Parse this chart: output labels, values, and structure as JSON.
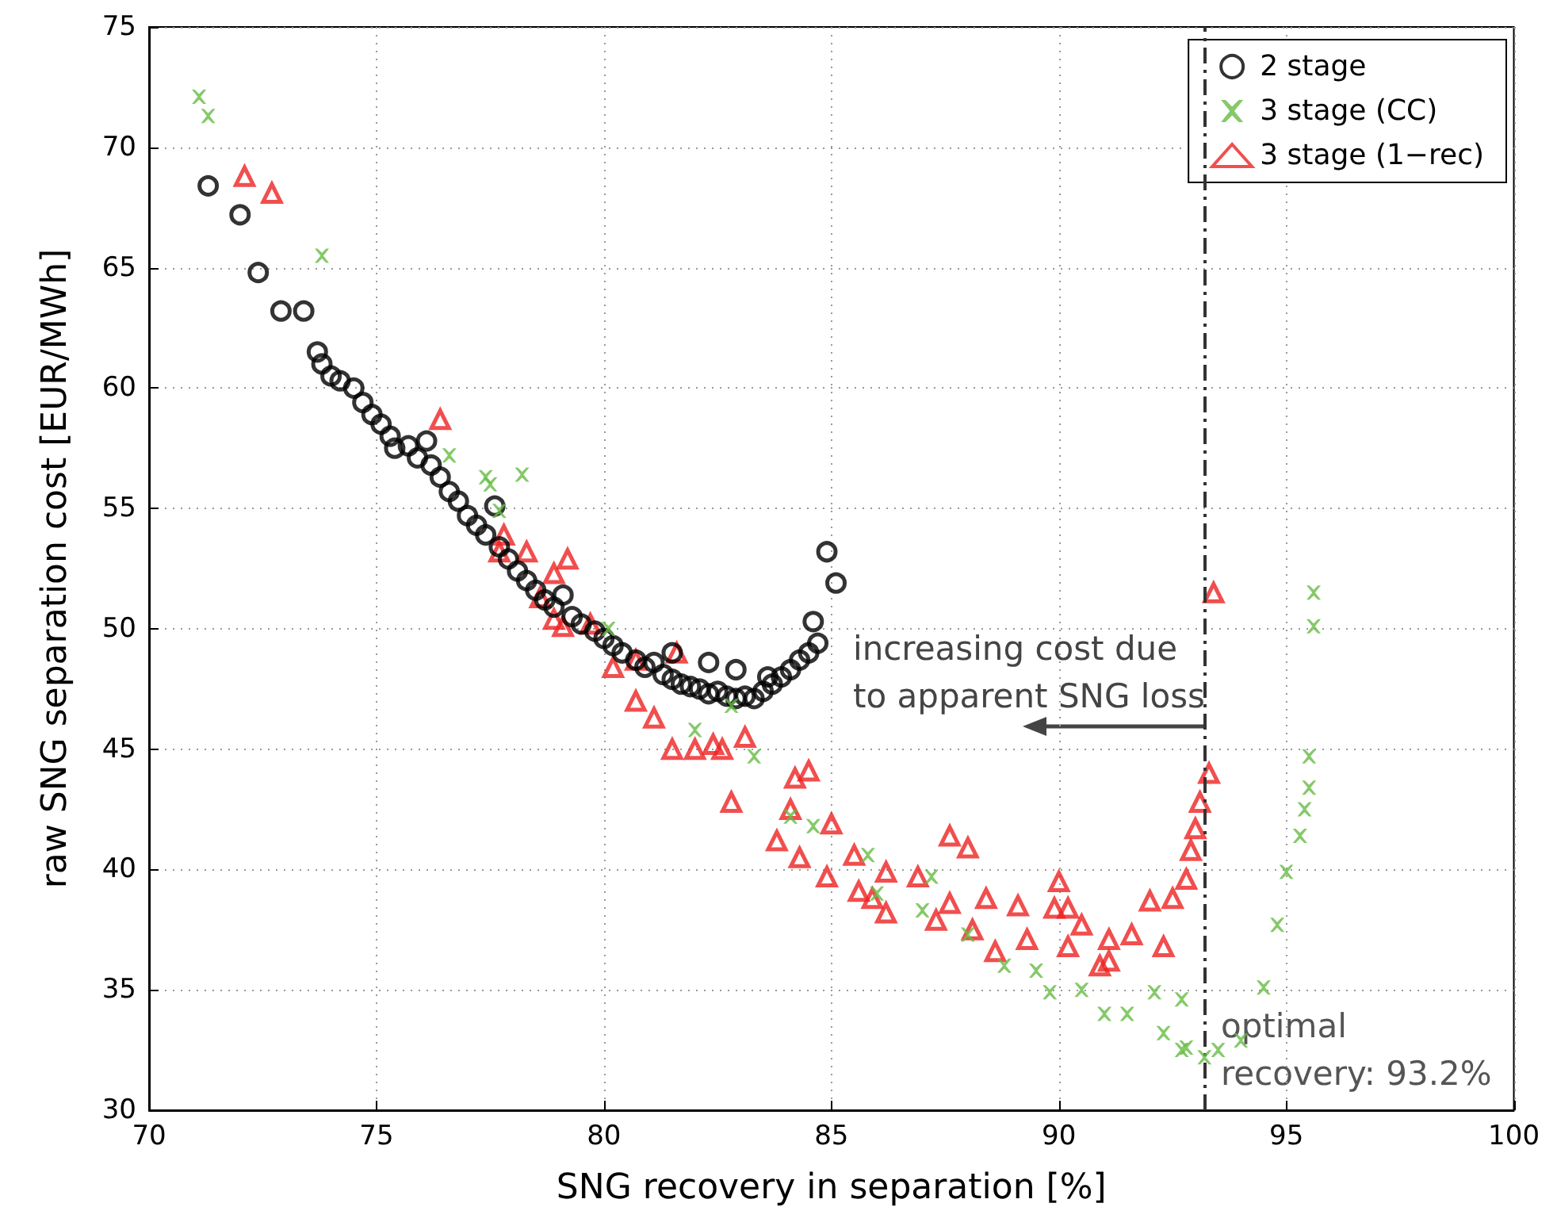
{
  "chart_data": {
    "type": "scatter",
    "xlabel": "SNG recovery in separation [%]",
    "ylabel": "raw SNG separation cost [EUR/MWh]",
    "xlim": [
      70,
      100
    ],
    "xticks": [
      70,
      75,
      80,
      85,
      90,
      95,
      100
    ],
    "ylim": [
      30,
      75
    ],
    "yticks": [
      30,
      35,
      40,
      45,
      50,
      55,
      60,
      65,
      70,
      75
    ],
    "grid": true,
    "legend": "top right",
    "series": [
      {
        "name": "2 stage",
        "color": "#000000",
        "marker": "circle",
        "x": [
          71.3,
          72.0,
          72.4,
          72.9,
          73.4,
          73.7,
          73.8,
          74.0,
          74.2,
          74.5,
          74.7,
          74.9,
          75.1,
          75.3,
          75.4,
          75.7,
          75.9,
          76.1,
          76.2,
          76.4,
          76.6,
          76.8,
          77.0,
          77.2,
          77.4,
          77.6,
          77.7,
          77.9,
          78.1,
          78.3,
          78.5,
          78.7,
          78.9,
          79.1,
          79.3,
          79.5,
          79.8,
          80.0,
          80.2,
          80.4,
          80.7,
          80.9,
          81.1,
          81.3,
          81.5,
          81.7,
          81.9,
          82.1,
          82.3,
          82.5,
          82.7,
          82.9,
          83.1,
          83.3,
          83.5,
          83.7,
          83.9,
          84.1,
          84.3,
          84.5,
          84.7,
          84.6,
          84.9,
          85.1,
          81.5,
          82.3,
          82.9,
          83.6
        ],
        "values": [
          68.4,
          67.2,
          64.8,
          63.2,
          63.2,
          61.5,
          61.0,
          60.5,
          60.3,
          60.0,
          59.4,
          58.9,
          58.5,
          58.0,
          57.5,
          57.6,
          57.1,
          57.8,
          56.8,
          56.3,
          55.7,
          55.3,
          54.7,
          54.3,
          53.9,
          55.1,
          53.4,
          52.9,
          52.4,
          52.0,
          51.6,
          51.2,
          50.9,
          51.4,
          50.5,
          50.2,
          49.9,
          49.6,
          49.3,
          49.0,
          48.7,
          48.4,
          48.6,
          48.1,
          47.9,
          47.7,
          47.6,
          47.5,
          47.3,
          47.4,
          47.2,
          47.1,
          47.2,
          47.1,
          47.4,
          47.7,
          48.0,
          48.3,
          48.7,
          49.0,
          49.4,
          50.3,
          53.2,
          51.9,
          49.0,
          48.6,
          48.3,
          48.0
        ]
      },
      {
        "name": "3 stage (CC)",
        "color": "#66bb44",
        "marker": "cross",
        "x": [
          71.1,
          71.3,
          73.8,
          76.6,
          77.4,
          77.5,
          78.2,
          77.7,
          80.1,
          82.8,
          82.0,
          83.3,
          84.1,
          84.6,
          85.8,
          87.2,
          86.0,
          87.0,
          88.0,
          88.8,
          89.5,
          89.8,
          90.5,
          91.0,
          91.5,
          92.1,
          92.3,
          92.7,
          92.7,
          92.8,
          93.2,
          93.5,
          94.0,
          94.5,
          94.8,
          95.0,
          95.3,
          95.4,
          95.5,
          95.5,
          95.6,
          95.6
        ],
        "values": [
          72.1,
          71.3,
          65.5,
          57.2,
          56.3,
          56.0,
          56.4,
          54.9,
          50.0,
          46.8,
          45.8,
          44.7,
          42.2,
          41.8,
          40.6,
          39.7,
          39.0,
          38.3,
          37.3,
          36.0,
          35.8,
          34.9,
          35.0,
          34.0,
          34.0,
          34.9,
          33.2,
          34.6,
          32.5,
          32.6,
          32.2,
          32.5,
          32.9,
          35.1,
          37.7,
          39.9,
          41.4,
          42.5,
          43.4,
          44.7,
          50.1,
          51.5
        ]
      },
      {
        "name": "3 stage (1−rec)",
        "color": "#ee2222",
        "marker": "triangle",
        "x": [
          72.1,
          72.7,
          76.4,
          77.8,
          77.7,
          78.3,
          79.2,
          78.9,
          78.6,
          78.9,
          79.1,
          79.7,
          80.2,
          80.7,
          81.6,
          80.7,
          81.1,
          81.5,
          82.0,
          82.4,
          82.6,
          83.1,
          82.8,
          84.2,
          84.5,
          84.1,
          83.8,
          84.3,
          85.0,
          84.9,
          85.5,
          85.6,
          85.9,
          86.2,
          86.2,
          86.9,
          87.3,
          87.6,
          88.0,
          87.6,
          88.1,
          88.4,
          88.6,
          89.1,
          89.3,
          90.0,
          89.9,
          90.2,
          90.2,
          90.5,
          90.9,
          91.1,
          91.1,
          91.6,
          92.0,
          92.3,
          92.5,
          92.8,
          92.9,
          93.0,
          93.1,
          93.3,
          93.4
        ],
        "values": [
          68.8,
          68.1,
          58.7,
          53.9,
          53.2,
          53.2,
          52.9,
          52.3,
          51.3,
          50.4,
          50.1,
          50.2,
          48.4,
          48.7,
          49.0,
          47.0,
          46.3,
          45.0,
          45.0,
          45.2,
          45.0,
          45.5,
          42.8,
          43.8,
          44.1,
          42.5,
          41.2,
          40.5,
          41.9,
          39.7,
          40.6,
          39.1,
          38.8,
          39.9,
          38.2,
          39.7,
          37.9,
          41.4,
          40.9,
          38.6,
          37.5,
          38.8,
          36.6,
          38.5,
          37.1,
          39.5,
          38.4,
          38.4,
          36.8,
          37.7,
          36.0,
          37.1,
          36.2,
          37.3,
          38.7,
          36.8,
          38.8,
          39.6,
          40.8,
          41.7,
          42.8,
          44.0,
          51.5
        ]
      }
    ],
    "ref_lines": [
      {
        "axis": "x",
        "value": 93.2,
        "label": "optimal\nrecovery: 93.2%",
        "color": "#333333"
      }
    ],
    "annotations": [
      "increasing cost due\nto apparent SNG loss"
    ]
  }
}
